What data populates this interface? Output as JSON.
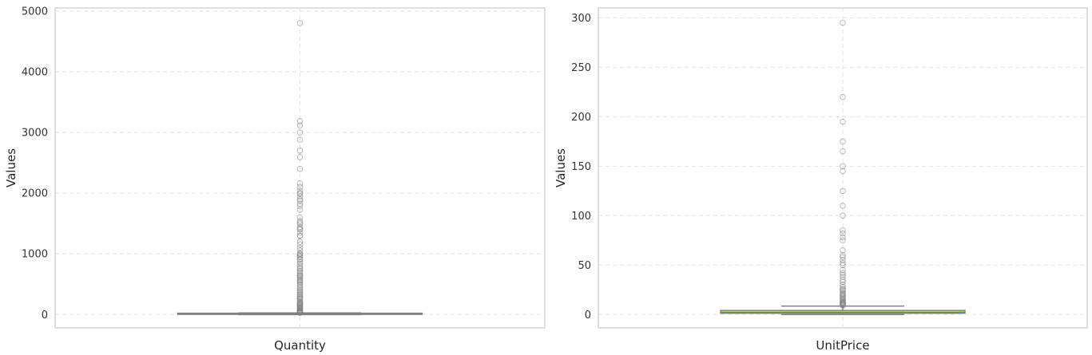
{
  "chart_data": [
    {
      "type": "box",
      "xlabel": "Quantity",
      "ylabel": "Values",
      "ylim": [
        -220,
        5050
      ],
      "yticks": [
        0,
        1000,
        2000,
        3000,
        4000,
        5000
      ],
      "grid": true,
      "box_color": "#8da0cb",
      "summary": {
        "whisker_low": -2,
        "q1": 2,
        "median": 6,
        "q3": 12,
        "whisker_high": 27
      },
      "outliers": [
        4800,
        3186,
        3114,
        3000,
        2880,
        2700,
        2592,
        2400,
        2160,
        2100,
        2040,
        2000,
        1992,
        1944,
        1900,
        1878,
        1824,
        1788,
        1728,
        1600,
        1540,
        1512,
        1488,
        1440,
        1412,
        1400,
        1350,
        1300,
        1296,
        1200,
        1152,
        1100,
        1056,
        1008,
        1000,
        984,
        960,
        950,
        912,
        900,
        864,
        840,
        800,
        768,
        750,
        720,
        700,
        672,
        648,
        640,
        624,
        600,
        576,
        560,
        540,
        528,
        500,
        480,
        450,
        432,
        400,
        384,
        360,
        336,
        324,
        300,
        288,
        270,
        256,
        240,
        216,
        200,
        192,
        180,
        168,
        160,
        150,
        144,
        128,
        120,
        108,
        100,
        96,
        80,
        72,
        64,
        60,
        50,
        48,
        40,
        36,
        32,
        30,
        28
      ]
    },
    {
      "type": "box",
      "xlabel": "UnitPrice",
      "ylabel": "Values",
      "ylim": [
        -13.5,
        310
      ],
      "yticks": [
        0,
        50,
        100,
        150,
        200,
        250,
        300
      ],
      "grid": true,
      "box_color": "#a6d854",
      "summary": {
        "whisker_low": 0,
        "q1": 1.25,
        "median": 2.08,
        "q3": 4.13,
        "whisker_high": 8.5
      },
      "outliers": [
        295,
        220,
        195,
        175,
        165,
        150,
        145,
        125,
        110,
        100,
        85,
        82,
        78,
        75,
        65,
        60,
        58,
        55,
        52,
        50,
        45,
        42,
        40,
        38,
        35,
        33,
        30,
        28,
        26,
        25,
        24,
        22,
        21,
        20,
        19,
        18,
        17,
        16,
        15,
        14,
        13,
        12.5,
        12,
        11.5,
        11,
        10.5,
        10,
        9.5,
        9
      ]
    }
  ]
}
